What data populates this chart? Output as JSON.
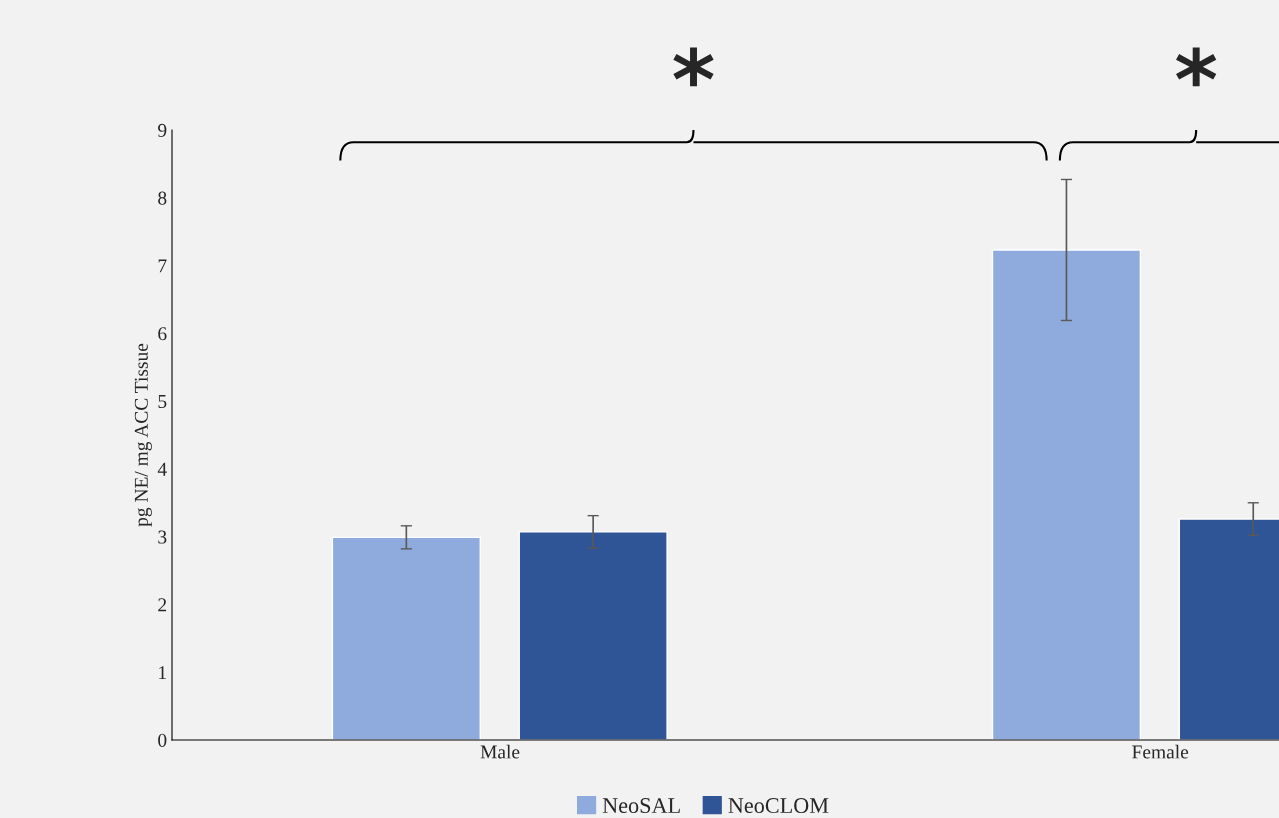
{
  "chart_data": {
    "type": "bar",
    "ylabel": "pg NE/ mg ACC Tissue",
    "categories": [
      "Male",
      "Female"
    ],
    "series": [
      {
        "name": "NeoSAL",
        "color": "#8faadc",
        "values": [
          2.99,
          7.23
        ],
        "errors": [
          0.17,
          1.04
        ]
      },
      {
        "name": "NeoCLOM",
        "color": "#2f5597",
        "values": [
          3.07,
          3.26
        ],
        "errors": [
          0.24,
          0.24
        ]
      }
    ],
    "ylim": [
      0,
      9
    ],
    "yticks": [
      0,
      1,
      2,
      3,
      4,
      5,
      6,
      7,
      8,
      9
    ],
    "grid": false,
    "legend": "bottom",
    "annotations": [
      "*",
      "*"
    ]
  }
}
